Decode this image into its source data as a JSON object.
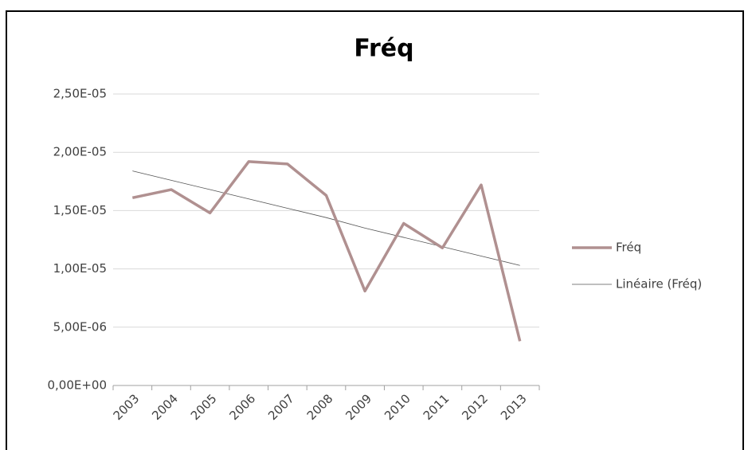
{
  "chart_data": {
    "type": "line",
    "title": "Fréq",
    "categories": [
      "2003",
      "2004",
      "2005",
      "2006",
      "2007",
      "2008",
      "2009",
      "2010",
      "2011",
      "2012",
      "2013"
    ],
    "series": [
      {
        "name": "Fréq",
        "color": "#b09090",
        "values": [
          1.61e-05,
          1.68e-05,
          1.48e-05,
          1.92e-05,
          1.9e-05,
          1.63e-05,
          8.1e-06,
          1.39e-05,
          1.18e-05,
          1.72e-05,
          3.8e-06
        ]
      },
      {
        "name": "Linéaire (Fréq)",
        "color": "#555555",
        "values": [
          1.84e-05,
          1.76e-05,
          1.68e-05,
          1.6e-05,
          1.52e-05,
          1.44e-05,
          1.35e-05,
          1.27e-05,
          1.19e-05,
          1.11e-05,
          1.03e-05
        ]
      }
    ],
    "ylim": [
      0,
      2.5e-05
    ],
    "yticks": [
      {
        "value": 0,
        "label": "0,00E+00"
      },
      {
        "value": 5e-06,
        "label": "5,00E-06"
      },
      {
        "value": 1e-05,
        "label": "1,00E-05"
      },
      {
        "value": 1.5e-05,
        "label": "1,50E-05"
      },
      {
        "value": 2e-05,
        "label": "2,00E-05"
      },
      {
        "value": 2.5e-05,
        "label": "2,50E-05"
      }
    ],
    "grid": true,
    "legend": "right"
  }
}
